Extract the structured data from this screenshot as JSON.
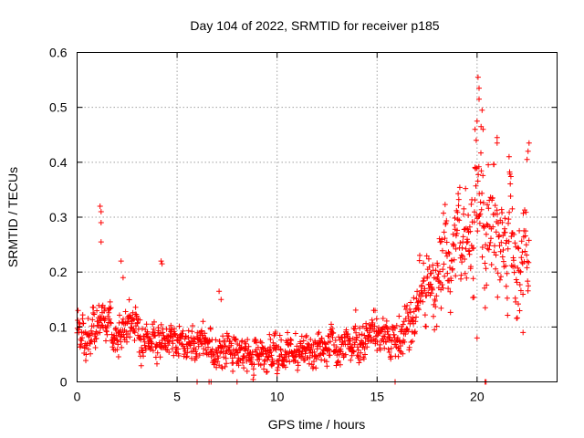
{
  "chart_data": {
    "type": "scatter",
    "title": "Day 104 of 2022, SRMTID for receiver p185",
    "xlabel": "GPS time / hours",
    "ylabel": "SRMTID / TECUs",
    "xlim": [
      0,
      24
    ],
    "ylim": [
      0,
      0.6
    ],
    "xticks": [
      0,
      5,
      10,
      15,
      20
    ],
    "xtick_labels": [
      "0",
      "5",
      "10",
      "15",
      "20"
    ],
    "yticks": [
      0,
      0.1,
      0.2,
      0.3,
      0.4,
      0.5,
      0.6
    ],
    "ytick_labels": [
      "0",
      "0.1",
      "0.2",
      "0.3",
      "0.4",
      "0.5",
      "0.6"
    ],
    "grid": true,
    "marker": "+",
    "series": [
      {
        "name": "SRMTID",
        "color": "#ff0000",
        "trend": {
          "x": [
            0,
            0.5,
            1,
            1.5,
            2,
            3,
            4,
            5,
            6,
            7,
            8,
            9,
            10,
            11,
            12,
            13,
            14,
            15,
            16,
            17,
            17.5,
            18,
            18.5,
            19,
            19.5,
            20,
            20.5,
            21,
            21.5,
            22,
            22.6
          ],
          "y": [
            0.1,
            0.09,
            0.095,
            0.115,
            0.1,
            0.085,
            0.08,
            0.075,
            0.065,
            0.06,
            0.055,
            0.05,
            0.055,
            0.06,
            0.055,
            0.06,
            0.075,
            0.085,
            0.1,
            0.13,
            0.15,
            0.18,
            0.21,
            0.24,
            0.3,
            0.33,
            0.29,
            0.26,
            0.23,
            0.22,
            0.24
          ]
        },
        "spread": {
          "x": [
            0,
            2,
            5,
            10,
            15,
            17,
            18,
            19,
            20,
            21,
            22,
            22.6
          ],
          "y": [
            0.035,
            0.03,
            0.028,
            0.028,
            0.03,
            0.045,
            0.06,
            0.08,
            0.1,
            0.09,
            0.08,
            0.08
          ]
        },
        "sample_interval_hours": 0.0167,
        "notable_points": [
          {
            "x": 1.15,
            "y": 0.32
          },
          {
            "x": 1.2,
            "y": 0.31
          },
          {
            "x": 1.2,
            "y": 0.29
          },
          {
            "x": 1.2,
            "y": 0.255
          },
          {
            "x": 2.2,
            "y": 0.22
          },
          {
            "x": 2.3,
            "y": 0.19
          },
          {
            "x": 4.2,
            "y": 0.22
          },
          {
            "x": 4.25,
            "y": 0.215
          },
          {
            "x": 7.1,
            "y": 0.165
          },
          {
            "x": 7.2,
            "y": 0.15
          },
          {
            "x": 6.0,
            "y": 0.0
          },
          {
            "x": 6.6,
            "y": 0.0
          },
          {
            "x": 6.7,
            "y": 0.0
          },
          {
            "x": 8.0,
            "y": 0.0
          },
          {
            "x": 15.9,
            "y": 0.0
          },
          {
            "x": 20.4,
            "y": 0.0
          },
          {
            "x": 20.45,
            "y": 0.0
          },
          {
            "x": 20.05,
            "y": 0.555
          },
          {
            "x": 20.1,
            "y": 0.535
          },
          {
            "x": 20.1,
            "y": 0.515
          },
          {
            "x": 20.25,
            "y": 0.495
          },
          {
            "x": 20.0,
            "y": 0.475
          },
          {
            "x": 20.2,
            "y": 0.465
          },
          {
            "x": 19.9,
            "y": 0.46
          },
          {
            "x": 20.3,
            "y": 0.46
          },
          {
            "x": 21.0,
            "y": 0.445
          },
          {
            "x": 21.0,
            "y": 0.435
          },
          {
            "x": 22.6,
            "y": 0.435
          },
          {
            "x": 22.55,
            "y": 0.42
          },
          {
            "x": 21.6,
            "y": 0.41
          },
          {
            "x": 19.9,
            "y": 0.39
          },
          {
            "x": 22.5,
            "y": 0.405
          },
          {
            "x": 20.0,
            "y": 0.08
          },
          {
            "x": 22.3,
            "y": 0.09
          }
        ]
      }
    ]
  }
}
